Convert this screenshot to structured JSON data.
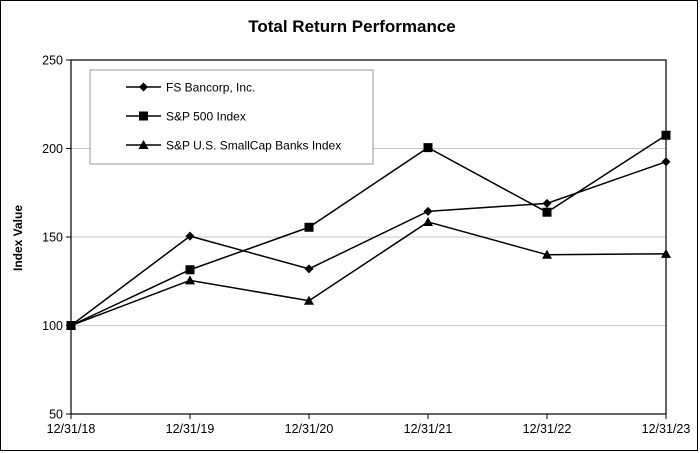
{
  "chart_data": {
    "type": "line",
    "title": "Total Return Performance",
    "xlabel": "",
    "ylabel": "Index Value",
    "categories": [
      "12/31/18",
      "12/31/19",
      "12/31/20",
      "12/31/21",
      "12/31/22",
      "12/31/23"
    ],
    "yticks": [
      50,
      100,
      150,
      200,
      250
    ],
    "ylim": [
      50,
      250
    ],
    "grid": "horizontal",
    "legend": "top-left",
    "series": [
      {
        "name": "FS Bancorp, Inc.",
        "marker": "diamond",
        "values": [
          100,
          150.5,
          132,
          164.5,
          169,
          192.5
        ]
      },
      {
        "name": "S&P 500 Index",
        "marker": "square",
        "values": [
          100,
          131.5,
          155.5,
          200.5,
          164,
          207.5
        ]
      },
      {
        "name": "S&P U.S. SmallCap Banks Index",
        "marker": "triangle",
        "values": [
          100,
          125.5,
          114,
          158.5,
          140,
          140.5
        ]
      }
    ]
  }
}
